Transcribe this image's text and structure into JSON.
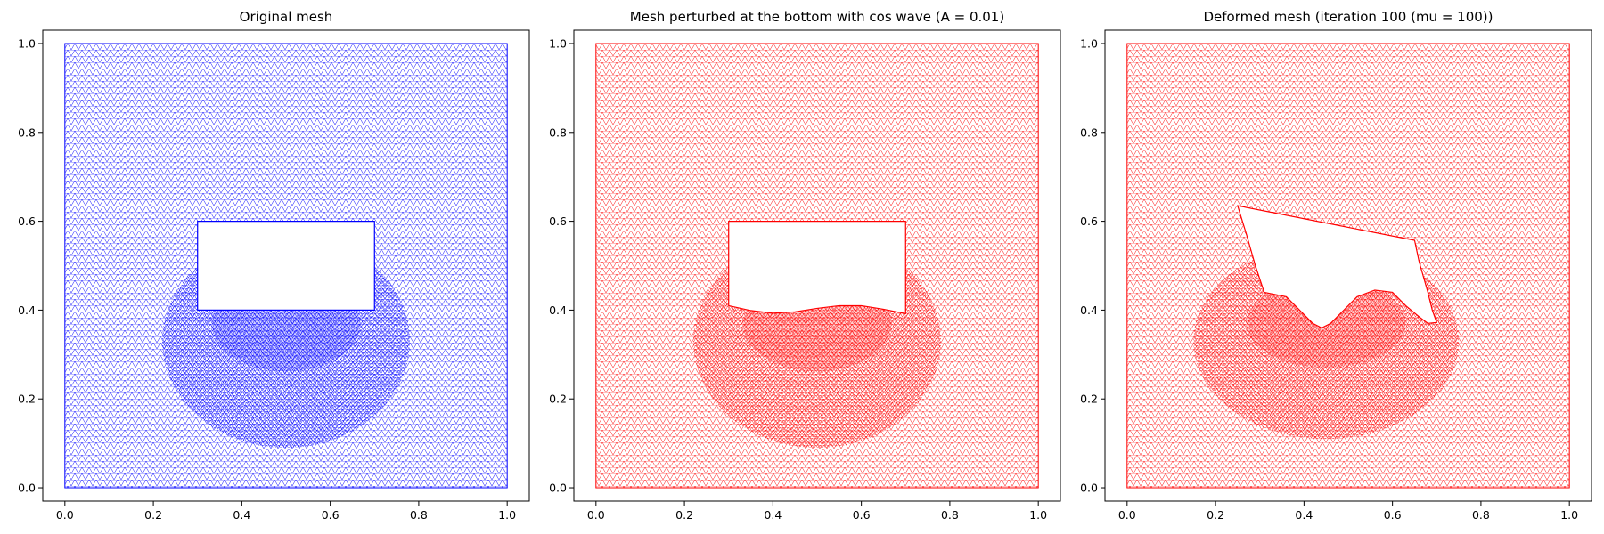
{
  "chart_data": [
    {
      "type": "mesh",
      "title": "Original mesh",
      "color": "#0000ff",
      "xlim": [
        -0.05,
        1.05
      ],
      "ylim": [
        -0.03,
        1.03
      ],
      "xticks": [
        "0.0",
        "0.2",
        "0.4",
        "0.6",
        "0.8",
        "1.0"
      ],
      "yticks": [
        "0.0",
        "0.2",
        "0.4",
        "0.6",
        "0.8",
        "1.0"
      ],
      "domain": [
        [
          0,
          0
        ],
        [
          1,
          0
        ],
        [
          1,
          1
        ],
        [
          0,
          1
        ]
      ],
      "hole": [
        [
          0.3,
          0.4
        ],
        [
          0.7,
          0.4
        ],
        [
          0.7,
          0.6
        ],
        [
          0.3,
          0.6
        ]
      ],
      "refinement_zone": {
        "center": [
          0.5,
          0.33
        ],
        "radius": [
          0.28,
          0.24
        ]
      }
    },
    {
      "type": "mesh",
      "title": "Mesh perturbed at the bottom with cos wave (A = 0.01)",
      "color": "#ff0000",
      "xlim": [
        -0.05,
        1.05
      ],
      "ylim": [
        -0.03,
        1.03
      ],
      "xticks": [
        "0.0",
        "0.2",
        "0.4",
        "0.6",
        "0.8",
        "1.0"
      ],
      "yticks": [
        "0.0",
        "0.2",
        "0.4",
        "0.6",
        "0.8",
        "1.0"
      ],
      "domain": [
        [
          0,
          0
        ],
        [
          1,
          0
        ],
        [
          1,
          1
        ],
        [
          0,
          1
        ]
      ],
      "hole": [
        [
          0.3,
          0.41
        ],
        [
          0.35,
          0.399
        ],
        [
          0.4,
          0.393
        ],
        [
          0.45,
          0.396
        ],
        [
          0.5,
          0.404
        ],
        [
          0.55,
          0.41
        ],
        [
          0.6,
          0.41
        ],
        [
          0.65,
          0.402
        ],
        [
          0.7,
          0.392
        ],
        [
          0.7,
          0.6
        ],
        [
          0.3,
          0.6
        ]
      ],
      "refinement_zone": {
        "center": [
          0.5,
          0.33
        ],
        "radius": [
          0.28,
          0.24
        ]
      }
    },
    {
      "type": "mesh",
      "title": "Deformed mesh (iteration 100 (mu = 100))",
      "color": "#ff0000",
      "xlim": [
        -0.05,
        1.05
      ],
      "ylim": [
        -0.03,
        1.03
      ],
      "xticks": [
        "0.0",
        "0.2",
        "0.4",
        "0.6",
        "0.8",
        "1.0"
      ],
      "yticks": [
        "0.0",
        "0.2",
        "0.4",
        "0.6",
        "0.8",
        "1.0"
      ],
      "domain": [
        [
          0,
          0
        ],
        [
          1,
          0
        ],
        [
          1,
          1
        ],
        [
          0,
          1
        ]
      ],
      "hole": [
        [
          0.25,
          0.635
        ],
        [
          0.65,
          0.557
        ],
        [
          0.66,
          0.51
        ],
        [
          0.68,
          0.44
        ],
        [
          0.69,
          0.4
        ],
        [
          0.7,
          0.372
        ],
        [
          0.68,
          0.37
        ],
        [
          0.66,
          0.385
        ],
        [
          0.63,
          0.41
        ],
        [
          0.6,
          0.44
        ],
        [
          0.56,
          0.445
        ],
        [
          0.52,
          0.43
        ],
        [
          0.49,
          0.4
        ],
        [
          0.46,
          0.37
        ],
        [
          0.44,
          0.36
        ],
        [
          0.42,
          0.37
        ],
        [
          0.39,
          0.4
        ],
        [
          0.36,
          0.43
        ],
        [
          0.31,
          0.44
        ],
        [
          0.29,
          0.5
        ],
        [
          0.27,
          0.57
        ]
      ],
      "refinement_zone": {
        "center": [
          0.45,
          0.33
        ],
        "radius": [
          0.3,
          0.22
        ]
      }
    }
  ]
}
